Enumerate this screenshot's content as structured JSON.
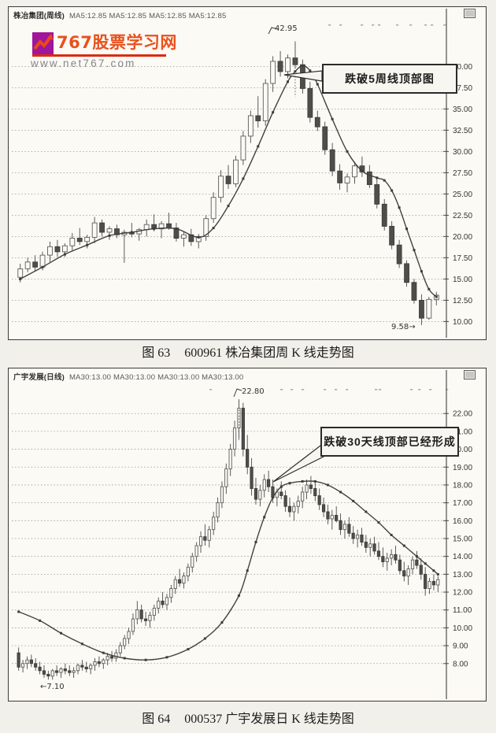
{
  "logo": {
    "title": "767股票学习网",
    "url": "www.net767.com",
    "square_color": "#a1159b",
    "zigzag_color": "#e8491b",
    "brand_color": "#e8511c"
  },
  "figures": [
    {
      "header": {
        "name": "株冶集团(周线)",
        "ma_text": "MA5:12.85 MA5:12.85 MA5:12.85 MA5:12.85"
      },
      "annotation": "跌破5周线顶部图",
      "peak_label": "42.95",
      "low_label": "9.58→",
      "caption": {
        "label": "图 63",
        "text": "600961 株冶集团周 K 线走势图"
      }
    },
    {
      "header": {
        "name": "广宇发展(日线)",
        "ma_text": "MA30:13.00 MA30:13.00 MA30:13.00 MA30:13.00"
      },
      "annotation": "跌破30天线顶部已经形成",
      "peak_label": "22.80",
      "low_label": "←7.10",
      "caption": {
        "label": "图 64",
        "text": "000537 广宇发展日 K 线走势图"
      }
    }
  ],
  "chart_data": [
    {
      "type": "candlestick",
      "title": "600961 株冶集团周K线走势图",
      "ma_label": "MA5",
      "ylim": [
        9.2,
        44.2
      ],
      "y_ticks": [
        "40.00",
        "37.50",
        "35.00",
        "32.50",
        "30.00",
        "27.50",
        "25.00",
        "22.50",
        "20.00",
        "17.50",
        "15.00",
        "12.50",
        "10.00"
      ],
      "peak_value": 42.95,
      "low_value": 9.58,
      "grid": "dotted-horizontal",
      "legend_position": "none",
      "candles": [
        [
          15.2,
          16.8,
          14.6,
          16.2
        ],
        [
          16.2,
          17.5,
          15.8,
          17.0
        ],
        [
          17.0,
          17.8,
          16.0,
          16.4
        ],
        [
          16.4,
          18.2,
          16.0,
          17.8
        ],
        [
          17.8,
          19.4,
          17.0,
          18.8
        ],
        [
          18.8,
          19.6,
          17.6,
          18.2
        ],
        [
          18.2,
          19.2,
          17.6,
          18.9
        ],
        [
          18.9,
          20.4,
          18.3,
          19.8
        ],
        [
          19.8,
          21.0,
          19.0,
          19.4
        ],
        [
          19.4,
          20.2,
          18.6,
          19.9
        ],
        [
          19.9,
          22.3,
          19.2,
          21.6
        ],
        [
          21.6,
          22.0,
          20.0,
          20.5
        ],
        [
          20.5,
          21.2,
          19.6,
          20.9
        ],
        [
          20.9,
          21.4,
          19.8,
          20.2
        ],
        [
          20.2,
          20.8,
          16.9,
          20.5
        ],
        [
          20.5,
          21.6,
          19.9,
          20.3
        ],
        [
          20.3,
          21.0,
          19.5,
          20.8
        ],
        [
          20.8,
          22.0,
          20.0,
          21.4
        ],
        [
          21.4,
          22.6,
          20.6,
          20.9
        ],
        [
          20.9,
          21.8,
          19.8,
          21.5
        ],
        [
          21.5,
          22.8,
          20.8,
          21.0
        ],
        [
          21.0,
          21.6,
          19.4,
          19.8
        ],
        [
          19.8,
          20.6,
          18.8,
          20.2
        ],
        [
          20.2,
          20.9,
          18.9,
          19.4
        ],
        [
          19.4,
          20.3,
          18.6,
          20.0
        ],
        [
          20.0,
          22.5,
          19.5,
          22.1
        ],
        [
          22.1,
          25.2,
          21.6,
          24.6
        ],
        [
          24.6,
          27.8,
          24.0,
          27.1
        ],
        [
          27.1,
          28.4,
          25.6,
          26.2
        ],
        [
          26.2,
          29.5,
          25.8,
          29.0
        ],
        [
          29.0,
          32.4,
          28.4,
          31.8
        ],
        [
          31.8,
          34.8,
          31.0,
          34.2
        ],
        [
          34.2,
          36.5,
          32.8,
          33.6
        ],
        [
          33.6,
          38.5,
          33.0,
          38.0
        ],
        [
          38.0,
          41.2,
          37.0,
          40.6
        ],
        [
          40.6,
          41.8,
          38.8,
          39.4
        ],
        [
          39.4,
          41.4,
          38.6,
          41.0
        ],
        [
          41.0,
          42.95,
          39.8,
          40.2
        ],
        [
          40.2,
          40.8,
          36.8,
          37.4
        ],
        [
          37.4,
          38.2,
          33.4,
          34.0
        ],
        [
          34.0,
          34.8,
          32.4,
          32.9
        ],
        [
          32.9,
          33.5,
          29.6,
          30.2
        ],
        [
          30.2,
          31.0,
          27.1,
          27.7
        ],
        [
          27.7,
          28.5,
          25.5,
          26.3
        ],
        [
          26.3,
          27.4,
          25.2,
          27.0
        ],
        [
          27.0,
          28.8,
          26.2,
          28.3
        ],
        [
          28.3,
          29.4,
          27.0,
          27.6
        ],
        [
          27.6,
          28.4,
          25.7,
          26.1
        ],
        [
          26.1,
          26.8,
          23.3,
          23.8
        ],
        [
          23.8,
          24.4,
          20.7,
          21.2
        ],
        [
          21.2,
          21.8,
          18.5,
          19.0
        ],
        [
          19.0,
          19.6,
          16.3,
          16.8
        ],
        [
          16.8,
          17.2,
          14.1,
          14.6
        ],
        [
          14.6,
          15.0,
          12.1,
          12.5
        ],
        [
          12.5,
          13.2,
          9.58,
          10.4
        ],
        [
          10.4,
          12.9,
          10.2,
          12.6
        ],
        [
          12.6,
          13.5,
          11.9,
          13.1
        ]
      ],
      "ma_points": [
        [
          0,
          15.0
        ],
        [
          3,
          16.4
        ],
        [
          6,
          17.9
        ],
        [
          9,
          19.0
        ],
        [
          12,
          20.1
        ],
        [
          15,
          20.5
        ],
        [
          18,
          20.9
        ],
        [
          21,
          20.9
        ],
        [
          24,
          19.9
        ],
        [
          26,
          21.0
        ],
        [
          28,
          23.6
        ],
        [
          30,
          26.8
        ],
        [
          32,
          30.6
        ],
        [
          34,
          34.6
        ],
        [
          36,
          38.2
        ],
        [
          37,
          39.4
        ],
        [
          38,
          40.1
        ],
        [
          39,
          39.5
        ],
        [
          40,
          37.9
        ],
        [
          42,
          33.8
        ],
        [
          44,
          30.0
        ],
        [
          46,
          27.7
        ],
        [
          48,
          26.9
        ],
        [
          49,
          26.6
        ],
        [
          50,
          25.4
        ],
        [
          51,
          23.4
        ],
        [
          52,
          20.9
        ],
        [
          53,
          18.4
        ],
        [
          54,
          15.9
        ],
        [
          55,
          13.8
        ],
        [
          56,
          12.9
        ]
      ]
    },
    {
      "type": "candlestick",
      "title": "000537 广宇发展日K线走势图",
      "ma_label": "MA30",
      "ylim": [
        6.8,
        23.2
      ],
      "y_ticks": [
        "22.00",
        "21.00",
        "20.00",
        "19.00",
        "18.00",
        "17.00",
        "16.00",
        "15.00",
        "14.00",
        "13.00",
        "12.00",
        "11.00",
        "10.00",
        "9.00",
        "8.00"
      ],
      "peak_value": 22.8,
      "low_value": 7.1,
      "grid": "dotted-horizontal",
      "legend_position": "none",
      "candles": [
        [
          8.6,
          8.9,
          7.6,
          7.8
        ],
        [
          7.8,
          8.2,
          7.5,
          8.0
        ],
        [
          8.0,
          8.4,
          7.7,
          8.2
        ],
        [
          8.2,
          8.5,
          7.8,
          8.0
        ],
        [
          8.0,
          8.3,
          7.6,
          7.8
        ],
        [
          7.8,
          8.1,
          7.4,
          7.6
        ],
        [
          7.6,
          7.9,
          7.2,
          7.4
        ],
        [
          7.4,
          7.6,
          7.1,
          7.3
        ],
        [
          7.3,
          7.7,
          7.1,
          7.6
        ],
        [
          7.6,
          7.9,
          7.3,
          7.5
        ],
        [
          7.5,
          7.8,
          7.2,
          7.7
        ],
        [
          7.7,
          8.0,
          7.4,
          7.6
        ],
        [
          7.6,
          7.9,
          7.3,
          7.5
        ],
        [
          7.5,
          7.8,
          7.2,
          7.6
        ],
        [
          7.6,
          8.0,
          7.4,
          7.9
        ],
        [
          7.9,
          8.2,
          7.6,
          7.8
        ],
        [
          7.8,
          8.1,
          7.5,
          7.7
        ],
        [
          7.7,
          8.0,
          7.4,
          7.9
        ],
        [
          7.9,
          8.3,
          7.6,
          8.1
        ],
        [
          8.1,
          8.4,
          7.8,
          8.0
        ],
        [
          8.0,
          8.3,
          7.7,
          8.2
        ],
        [
          8.2,
          8.6,
          7.9,
          8.4
        ],
        [
          8.4,
          8.7,
          8.1,
          8.3
        ],
        [
          8.3,
          8.8,
          8.1,
          8.6
        ],
        [
          8.6,
          9.2,
          8.4,
          9.0
        ],
        [
          9.0,
          9.6,
          8.8,
          9.4
        ],
        [
          9.4,
          10.0,
          9.1,
          9.8
        ],
        [
          9.8,
          10.8,
          9.6,
          10.5
        ],
        [
          10.5,
          11.5,
          10.2,
          11.0
        ],
        [
          11.0,
          11.3,
          10.3,
          10.5
        ],
        [
          10.5,
          10.9,
          10.1,
          10.4
        ],
        [
          10.4,
          10.9,
          10.0,
          10.7
        ],
        [
          10.7,
          11.3,
          10.4,
          11.1
        ],
        [
          11.1,
          11.7,
          10.8,
          11.5
        ],
        [
          11.5,
          12.0,
          11.1,
          11.3
        ],
        [
          11.3,
          11.9,
          11.0,
          11.7
        ],
        [
          11.7,
          12.4,
          11.4,
          12.2
        ],
        [
          12.2,
          12.9,
          11.9,
          12.7
        ],
        [
          12.7,
          13.3,
          12.3,
          12.5
        ],
        [
          12.5,
          13.1,
          12.2,
          12.9
        ],
        [
          12.9,
          13.6,
          12.6,
          13.4
        ],
        [
          13.4,
          14.2,
          13.1,
          14.0
        ],
        [
          14.0,
          14.8,
          13.7,
          14.6
        ],
        [
          14.6,
          15.4,
          14.2,
          15.1
        ],
        [
          15.1,
          15.8,
          14.6,
          14.9
        ],
        [
          14.9,
          15.7,
          14.5,
          15.5
        ],
        [
          15.5,
          16.5,
          15.2,
          16.2
        ],
        [
          16.2,
          17.3,
          15.9,
          17.0
        ],
        [
          17.0,
          18.2,
          16.7,
          17.9
        ],
        [
          17.9,
          19.2,
          17.5,
          18.9
        ],
        [
          18.9,
          20.3,
          18.5,
          20.0
        ],
        [
          20.0,
          21.6,
          19.6,
          21.2
        ],
        [
          21.2,
          22.8,
          20.6,
          22.3
        ],
        [
          22.3,
          22.6,
          19.6,
          20.0
        ],
        [
          20.0,
          20.8,
          18.6,
          19.0
        ],
        [
          19.0,
          19.5,
          17.4,
          17.8
        ],
        [
          17.8,
          18.4,
          16.9,
          17.2
        ],
        [
          17.2,
          18.0,
          16.8,
          17.7
        ],
        [
          17.7,
          18.6,
          17.3,
          18.3
        ],
        [
          18.3,
          18.8,
          17.6,
          17.9
        ],
        [
          17.9,
          18.3,
          17.0,
          17.3
        ],
        [
          17.3,
          17.8,
          16.8,
          17.6
        ],
        [
          17.6,
          18.2,
          17.2,
          17.4
        ],
        [
          17.4,
          17.7,
          16.5,
          16.8
        ],
        [
          16.8,
          17.3,
          16.2,
          16.5
        ],
        [
          16.5,
          17.0,
          16.0,
          16.8
        ],
        [
          16.8,
          17.4,
          16.4,
          17.1
        ],
        [
          17.1,
          17.9,
          16.7,
          17.6
        ],
        [
          17.6,
          18.3,
          17.2,
          18.0
        ],
        [
          18.0,
          18.5,
          17.5,
          17.8
        ],
        [
          17.8,
          18.2,
          17.1,
          17.4
        ],
        [
          17.4,
          17.8,
          16.6,
          16.9
        ],
        [
          16.9,
          17.3,
          16.2,
          16.5
        ],
        [
          16.5,
          16.9,
          15.8,
          16.1
        ],
        [
          16.1,
          16.6,
          15.5,
          16.3
        ],
        [
          16.3,
          16.8,
          15.9,
          16.0
        ],
        [
          16.0,
          16.4,
          15.2,
          15.5
        ],
        [
          15.5,
          16.0,
          15.0,
          15.8
        ],
        [
          15.8,
          16.2,
          15.1,
          15.3
        ],
        [
          15.3,
          15.7,
          14.7,
          15.0
        ],
        [
          15.0,
          15.5,
          14.5,
          15.2
        ],
        [
          15.2,
          15.6,
          14.6,
          14.8
        ],
        [
          14.8,
          15.2,
          14.2,
          14.5
        ],
        [
          14.5,
          15.0,
          14.0,
          14.7
        ],
        [
          14.7,
          15.1,
          14.1,
          14.3
        ],
        [
          14.3,
          14.8,
          13.8,
          14.0
        ],
        [
          14.0,
          14.5,
          13.4,
          13.7
        ],
        [
          13.7,
          14.2,
          13.2,
          13.9
        ],
        [
          13.9,
          14.4,
          13.5,
          14.1
        ],
        [
          14.1,
          14.6,
          13.6,
          13.8
        ],
        [
          13.8,
          14.1,
          13.0,
          13.2
        ],
        [
          13.2,
          13.7,
          12.6,
          12.9
        ],
        [
          12.9,
          13.5,
          12.4,
          13.3
        ],
        [
          13.3,
          14.0,
          13.0,
          13.8
        ],
        [
          13.8,
          14.3,
          13.3,
          13.5
        ],
        [
          13.5,
          13.9,
          12.7,
          13.0
        ],
        [
          13.0,
          13.4,
          11.8,
          12.2
        ],
        [
          12.2,
          12.8,
          11.9,
          12.6
        ],
        [
          12.6,
          13.0,
          12.1,
          12.4
        ],
        [
          12.4,
          12.9,
          12.0,
          12.7
        ]
      ],
      "ma_points": [
        [
          0,
          10.9
        ],
        [
          5,
          10.4
        ],
        [
          10,
          9.7
        ],
        [
          15,
          9.1
        ],
        [
          20,
          8.6
        ],
        [
          25,
          8.3
        ],
        [
          30,
          8.2
        ],
        [
          35,
          8.35
        ],
        [
          40,
          8.8
        ],
        [
          44,
          9.4
        ],
        [
          48,
          10.3
        ],
        [
          52,
          11.8
        ],
        [
          54,
          13.2
        ],
        [
          56,
          14.8
        ],
        [
          58,
          16.2
        ],
        [
          60,
          17.3
        ],
        [
          62,
          17.9
        ],
        [
          64,
          18.1
        ],
        [
          67,
          18.2
        ],
        [
          70,
          18.2
        ],
        [
          73,
          18.0
        ],
        [
          76,
          17.6
        ],
        [
          79,
          17.1
        ],
        [
          82,
          16.5
        ],
        [
          85,
          15.9
        ],
        [
          88,
          15.2
        ],
        [
          91,
          14.6
        ],
        [
          94,
          14.0
        ],
        [
          96,
          13.6
        ],
        [
          98,
          13.2
        ],
        [
          99,
          13.0
        ]
      ]
    }
  ]
}
